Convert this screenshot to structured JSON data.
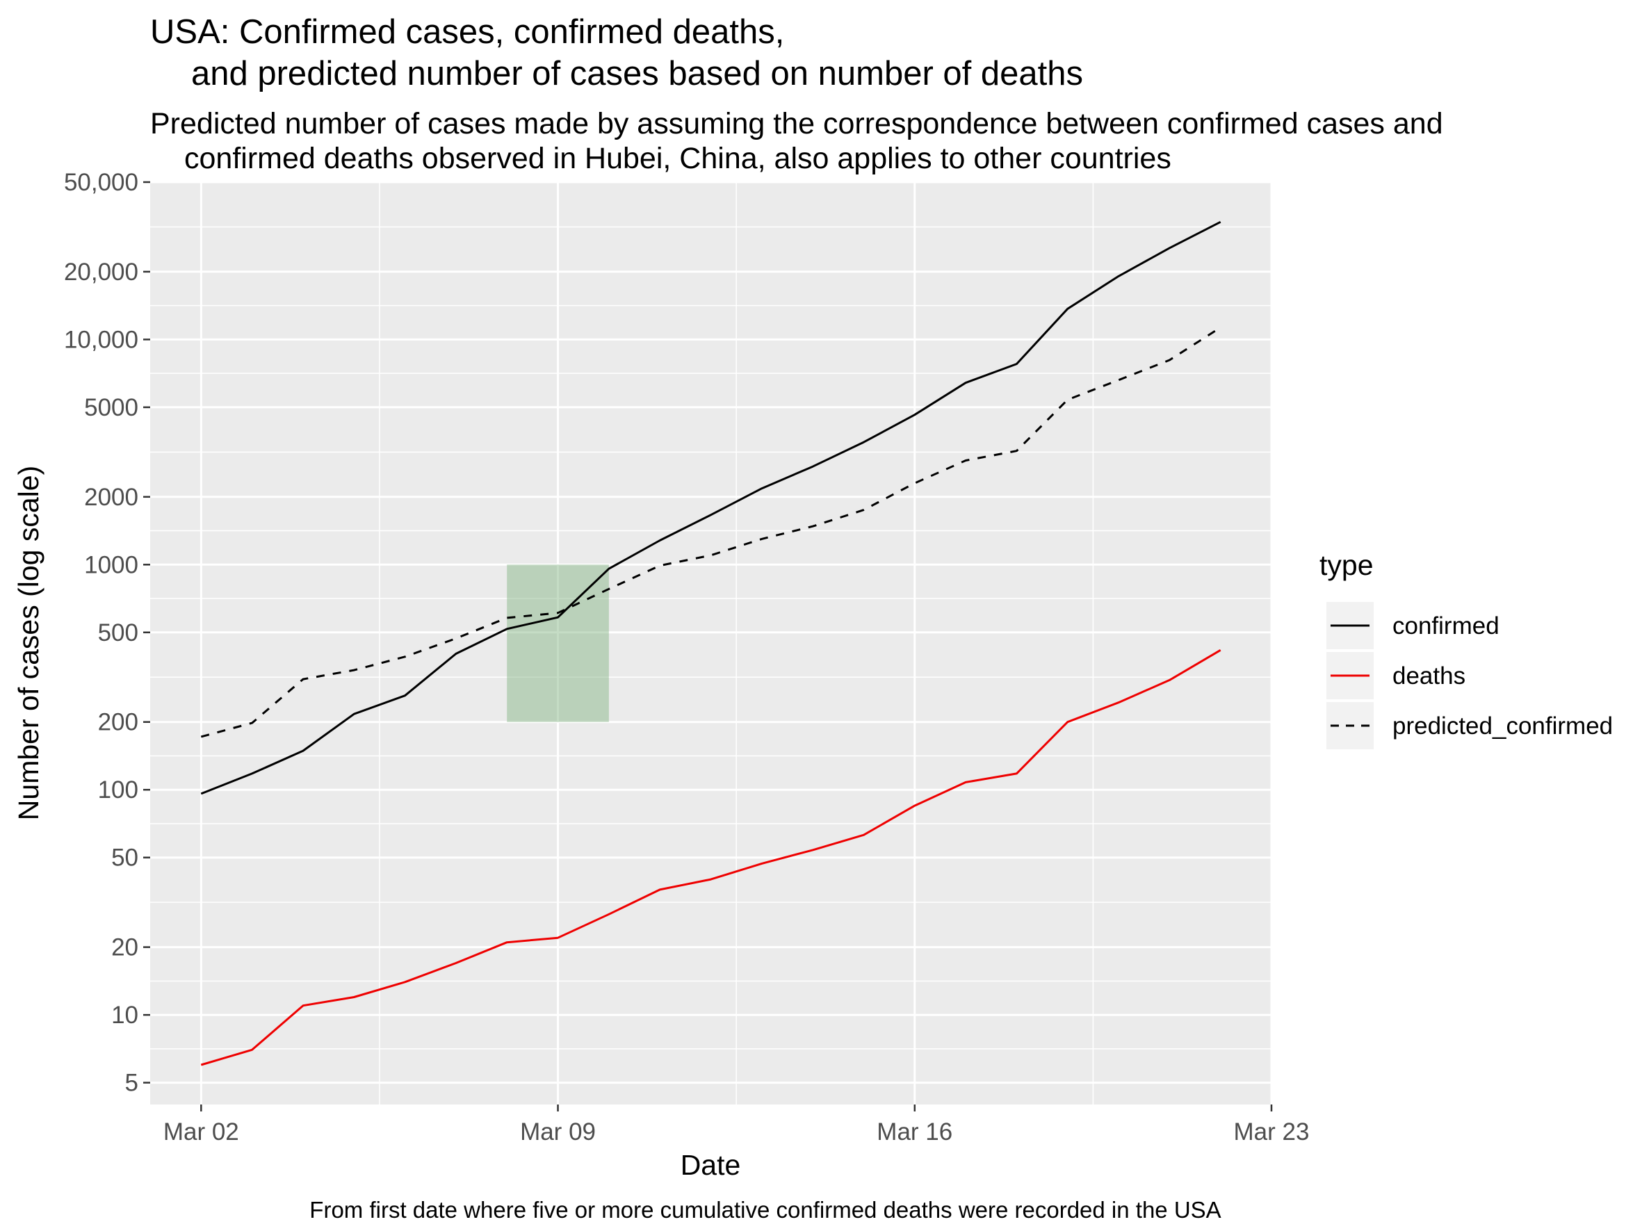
{
  "chart_data": {
    "type": "line",
    "title_line1": "USA: Confirmed cases, confirmed deaths,",
    "title_line2": "and predicted number of cases based on number of deaths",
    "subtitle_line1": "Predicted number of cases made by assuming the correspondence between confirmed cases and",
    "subtitle_line2": "confirmed deaths observed in Hubei, China, also applies to other countries",
    "xlabel": "Date",
    "ylabel": "Number of cases (log scale)",
    "caption": "From first date where five or more cumulative confirmed deaths were recorded in the USA",
    "y_scale": "log10",
    "ylim": [
      4,
      50000
    ],
    "xlim": [
      "2020-03-01",
      "2020-03-23"
    ],
    "x_ticks": [
      {
        "date": "2020-03-02",
        "label": "Mar 02"
      },
      {
        "date": "2020-03-09",
        "label": "Mar 09"
      },
      {
        "date": "2020-03-16",
        "label": "Mar 16"
      },
      {
        "date": "2020-03-23",
        "label": "Mar 23"
      }
    ],
    "y_ticks": [
      {
        "value": 5,
        "label": "5"
      },
      {
        "value": 10,
        "label": "10"
      },
      {
        "value": 20,
        "label": "20"
      },
      {
        "value": 50,
        "label": "50"
      },
      {
        "value": 100,
        "label": "100"
      },
      {
        "value": 200,
        "label": "200"
      },
      {
        "value": 500,
        "label": "500"
      },
      {
        "value": 1000,
        "label": "1000"
      },
      {
        "value": 2000,
        "label": "2000"
      },
      {
        "value": 5000,
        "label": "5000"
      },
      {
        "value": 10000,
        "label": "10,000"
      },
      {
        "value": 20000,
        "label": "20,000"
      },
      {
        "value": 50000,
        "label": "50,000"
      }
    ],
    "grid": true,
    "legend": {
      "title": "type",
      "position": "right"
    },
    "x": [
      "2020-03-02",
      "2020-03-03",
      "2020-03-04",
      "2020-03-05",
      "2020-03-06",
      "2020-03-07",
      "2020-03-08",
      "2020-03-09",
      "2020-03-10",
      "2020-03-11",
      "2020-03-12",
      "2020-03-13",
      "2020-03-14",
      "2020-03-15",
      "2020-03-16",
      "2020-03-17",
      "2020-03-18",
      "2020-03-19",
      "2020-03-20",
      "2020-03-21",
      "2020-03-22"
    ],
    "series": [
      {
        "name": "confirmed",
        "color": "#000000",
        "dash": "solid",
        "values": [
          96,
          118,
          149,
          217,
          262,
          402,
          518,
          583,
          959,
          1281,
          1663,
          2179,
          2726,
          3499,
          4632,
          6421,
          7786,
          13680,
          19101,
          25493,
          33276
        ]
      },
      {
        "name": "deaths",
        "color": "#ee0000",
        "dash": "solid",
        "values": [
          6,
          7,
          11,
          12,
          14,
          17,
          21,
          22,
          28,
          36,
          40,
          47,
          54,
          63,
          85,
          108,
          118,
          200,
          244,
          307,
          417
        ]
      },
      {
        "name": "predicted_confirmed",
        "color": "#000000",
        "dash": "dashed",
        "values": [
          172,
          198,
          310,
          340,
          390,
          470,
          580,
          610,
          780,
          990,
          1100,
          1300,
          1480,
          1750,
          2300,
          2900,
          3200,
          5400,
          6600,
          8100,
          11300
        ]
      }
    ],
    "highlight": {
      "x_start": "2020-03-08",
      "x_end": "2020-03-10",
      "y_min": 200,
      "y_max": 1000,
      "color": "#7fb17f"
    }
  }
}
